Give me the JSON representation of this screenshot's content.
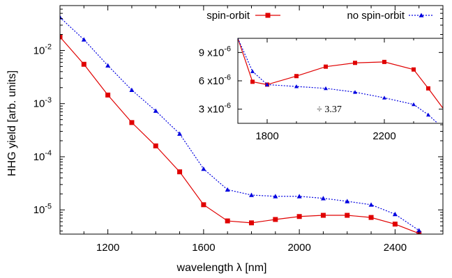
{
  "chart_data": [
    {
      "type": "line",
      "xlabel": "wavelength λ [nm]",
      "ylabel": "HHG yield [arb. units]",
      "xlim": [
        1000,
        2600
      ],
      "ylim": [
        3.5e-06,
        0.07
      ],
      "yscale": "log",
      "xticks": [
        1200,
        1600,
        2000,
        2400
      ],
      "xtick_labels": [
        "1200",
        "1600",
        "2000",
        "2400"
      ],
      "ytick_labels": [
        {
          "base": "10",
          "exp": "-2"
        },
        {
          "base": "10",
          "exp": "-3"
        },
        {
          "base": "10",
          "exp": "-4"
        },
        {
          "base": "10",
          "exp": "-5"
        }
      ],
      "ytick_values": [
        0.01,
        0.001,
        0.0001,
        1e-05
      ],
      "grid": false,
      "legend_position": "top",
      "series": [
        {
          "name": "spin-orbit",
          "color": "#e00000",
          "marker": "square",
          "line": "solid",
          "x": [
            1000,
            1100,
            1200,
            1300,
            1400,
            1500,
            1600,
            1700,
            1800,
            1900,
            2000,
            2100,
            2200,
            2300,
            2400,
            2500
          ],
          "y": [
            0.018,
            0.0055,
            0.00145,
            0.00044,
            0.00016,
            5.2e-05,
            1.25e-05,
            6.2e-06,
            5.7e-06,
            6.6e-06,
            7.5e-06,
            7.9e-06,
            7.9e-06,
            7.2e-06,
            5.4e-06,
            3.6e-06
          ]
        },
        {
          "name": "no spin-orbit",
          "color": "#0000e0",
          "marker": "triangle",
          "line": "dotted",
          "x": [
            1000,
            1100,
            1200,
            1300,
            1400,
            1500,
            1600,
            1700,
            1800,
            1900,
            2000,
            2100,
            2200,
            2300,
            2400,
            2500
          ],
          "y": [
            0.042,
            0.016,
            0.0052,
            0.0018,
            0.00073,
            0.00027,
            5.9e-05,
            2.4e-05,
            1.9e-05,
            1.8e-05,
            1.8e-05,
            1.65e-05,
            1.45e-05,
            1.25e-05,
            8.3e-06,
            4.1e-06
          ]
        }
      ]
    },
    {
      "type": "line",
      "inset": true,
      "annotation": "÷ 3.37",
      "xlim": [
        1700,
        2400
      ],
      "ylim": [
        1.5e-06,
        1.05e-05
      ],
      "xticks": [
        1800,
        2200
      ],
      "xtick_labels": [
        "1800",
        "2200"
      ],
      "yticks": [
        3e-06,
        6e-06,
        9e-06
      ],
      "ytick_labels": [
        {
          "base": "3 x10",
          "exp": "-6"
        },
        {
          "base": "6 x10",
          "exp": "-6"
        },
        {
          "base": "9 x10",
          "exp": "-6"
        }
      ],
      "series": [
        {
          "name": "spin-orbit",
          "color": "#e00000",
          "marker": "square",
          "line": "solid",
          "x": [
            1700,
            1750,
            1800,
            1900,
            2000,
            2100,
            2200,
            2300,
            2350,
            2400
          ],
          "y": [
            1.05e-05,
            5.9e-06,
            5.6e-06,
            6.5e-06,
            7.5e-06,
            7.9e-06,
            8e-06,
            7.2e-06,
            5.2e-06,
            3.1e-06
          ]
        },
        {
          "name": "no spin-orbit",
          "color": "#0000e0",
          "marker": "triangle",
          "line": "dotted",
          "x": [
            1700,
            1750,
            1800,
            1900,
            2000,
            2100,
            2200,
            2300,
            2350,
            2400
          ],
          "y": [
            1.05e-05,
            7e-06,
            5.6e-06,
            5.4e-06,
            5.2e-06,
            4.8e-06,
            4.2e-06,
            3.5e-06,
            2.4e-06,
            1e-06
          ]
        }
      ]
    }
  ]
}
